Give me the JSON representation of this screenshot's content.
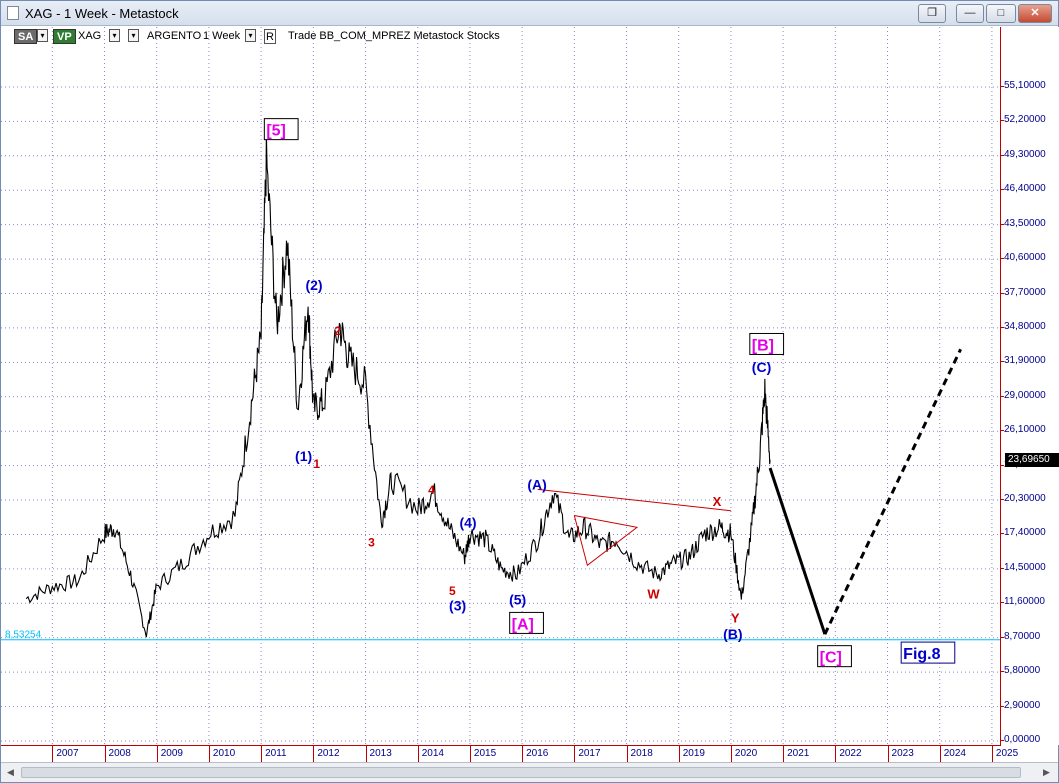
{
  "window": {
    "title": "XAG - 1 Week - Metastock",
    "buttons": {
      "restore": "❐",
      "minimize": "—",
      "maximize": "□",
      "close": "✕"
    }
  },
  "toolbar": {
    "sa": "SA",
    "vp": "VP",
    "symbol": "XAG",
    "name": "ARGENTO",
    "period": "1 Week",
    "r_button": "R",
    "info": "Trade  BB_COM_MPREZ  Metastock  Stocks",
    "colors": {
      "sa": "#6b6b6b",
      "vp": "#2e7d32"
    }
  },
  "y_axis": {
    "ticks": [
      "55,10000",
      "52,20000",
      "49,30000",
      "46,40000",
      "43,50000",
      "40,60000",
      "37,70000",
      "34,80000",
      "31,90000",
      "29,00000",
      "26,10000",
      "23,20000",
      "20,30000",
      "17,40000",
      "14,50000",
      "11,60000",
      "8,70000",
      "5,80000",
      "2,90000",
      "0,00000"
    ],
    "last_price": "23,69650",
    "ref_level": "8,53254"
  },
  "x_axis": {
    "ticks": [
      "2007",
      "2008",
      "2009",
      "2010",
      "2011",
      "2012",
      "2013",
      "2014",
      "2015",
      "2016",
      "2017",
      "2018",
      "2019",
      "2020",
      "2021",
      "2022",
      "2023",
      "2024",
      "2025"
    ]
  },
  "annotations": {
    "w5_major": "[5]",
    "w2": "(2)",
    "w1": "(1)",
    "w3": "(3)",
    "w4": "(4)",
    "w5": "(5)",
    "s2": "2",
    "s1": "1",
    "s3": "3",
    "s4": "4",
    "s5": "5",
    "wA_major": "[A]",
    "wA": "(A)",
    "wX": "X",
    "wW": "W",
    "wY": "Y",
    "wB": "(B)",
    "wC": "(C)",
    "wB_major": "[B]",
    "wC_major": "[C]",
    "fig": "Fig.8"
  },
  "colors": {
    "price": "#000000",
    "grid": "#8a8ac8",
    "axis": "#c00000",
    "wave_blue": "#0000cc",
    "wave_red": "#cc0000",
    "wave_magenta": "#e600e6",
    "ref_line": "#00bfff"
  },
  "chart_data": {
    "type": "line",
    "title": "XAG - 1 Week",
    "xlabel": "",
    "ylabel": "",
    "ylim": [
      0,
      58
    ],
    "series": [
      {
        "name": "XAG",
        "x": [
          2006.5,
          2007.0,
          2007.5,
          2008.0,
          2008.2,
          2008.5,
          2008.8,
          2009.0,
          2009.5,
          2010.0,
          2010.5,
          2010.8,
          2011.0,
          2011.1,
          2011.3,
          2011.5,
          2011.7,
          2011.9,
          2012.0,
          2012.2,
          2012.5,
          2012.7,
          2013.0,
          2013.3,
          2013.5,
          2014.0,
          2014.3,
          2014.6,
          2014.9,
          2015.0,
          2015.3,
          2015.6,
          2015.9,
          2016.3,
          2016.6,
          2016.9,
          2017.2,
          2017.5,
          2017.8,
          2018.2,
          2018.6,
          2018.9,
          2019.2,
          2019.5,
          2019.8,
          2020.0,
          2020.2,
          2020.4,
          2020.55,
          2020.65,
          2020.75
        ],
        "y": [
          12.0,
          13.0,
          13.5,
          17.5,
          18.0,
          14.0,
          9.0,
          13.0,
          15.0,
          17.5,
          19.0,
          28.0,
          34.0,
          49.0,
          35.0,
          42.0,
          28.0,
          37.0,
          28.0,
          28.5,
          35.0,
          32.0,
          30.0,
          18.5,
          22.0,
          19.5,
          21.0,
          18.0,
          15.5,
          17.5,
          17.0,
          14.5,
          14.0,
          17.0,
          21.0,
          17.0,
          18.0,
          16.5,
          17.0,
          15.0,
          14.0,
          15.0,
          15.5,
          17.5,
          18.0,
          17.5,
          12.0,
          18.0,
          24.0,
          29.5,
          23.7
        ]
      },
      {
        "name": "projection",
        "x": [
          2020.75,
          2021.8,
          2024.4
        ],
        "y": [
          23.0,
          9.0,
          33.0
        ]
      }
    ]
  }
}
